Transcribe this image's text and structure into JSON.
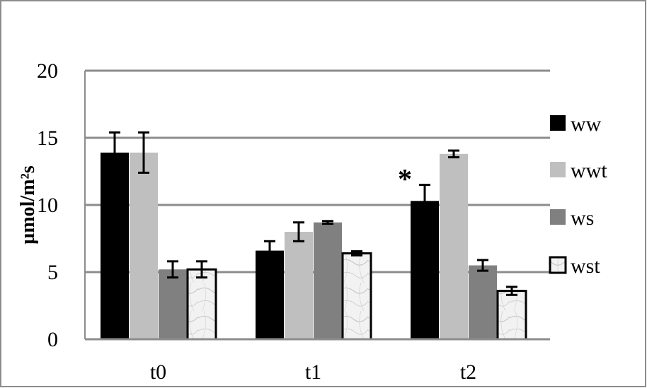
{
  "chart_data": {
    "type": "bar",
    "title": "",
    "xlabel": "",
    "ylabel": "µmol/m²s",
    "ylim": [
      0,
      20
    ],
    "yticks": [
      0,
      5,
      10,
      15,
      20
    ],
    "grid": "horizontal",
    "legend_position": "right",
    "categories": [
      "t0",
      "t1",
      "t2"
    ],
    "series": [
      {
        "name": "ww",
        "values": [
          13.9,
          6.6,
          10.3
        ],
        "errors": [
          1.5,
          0.7,
          1.2
        ],
        "color": "#000000",
        "pattern": "solid"
      },
      {
        "name": "wwt",
        "values": [
          13.9,
          8.0,
          13.8
        ],
        "errors": [
          1.5,
          0.7,
          0.25
        ],
        "color": "#bfbfbf",
        "pattern": "solid"
      },
      {
        "name": "ws",
        "values": [
          5.2,
          8.7,
          5.5
        ],
        "errors": [
          0.6,
          0.1,
          0.4
        ],
        "color": "#808080",
        "pattern": "solid"
      },
      {
        "name": "wst",
        "values": [
          5.2,
          6.4,
          3.6
        ],
        "errors": [
          0.6,
          0.15,
          0.3
        ],
        "color": "#ededed",
        "pattern": "marble"
      }
    ],
    "annotations": [
      {
        "text": "*",
        "category": "t2",
        "series": "ww"
      }
    ]
  }
}
